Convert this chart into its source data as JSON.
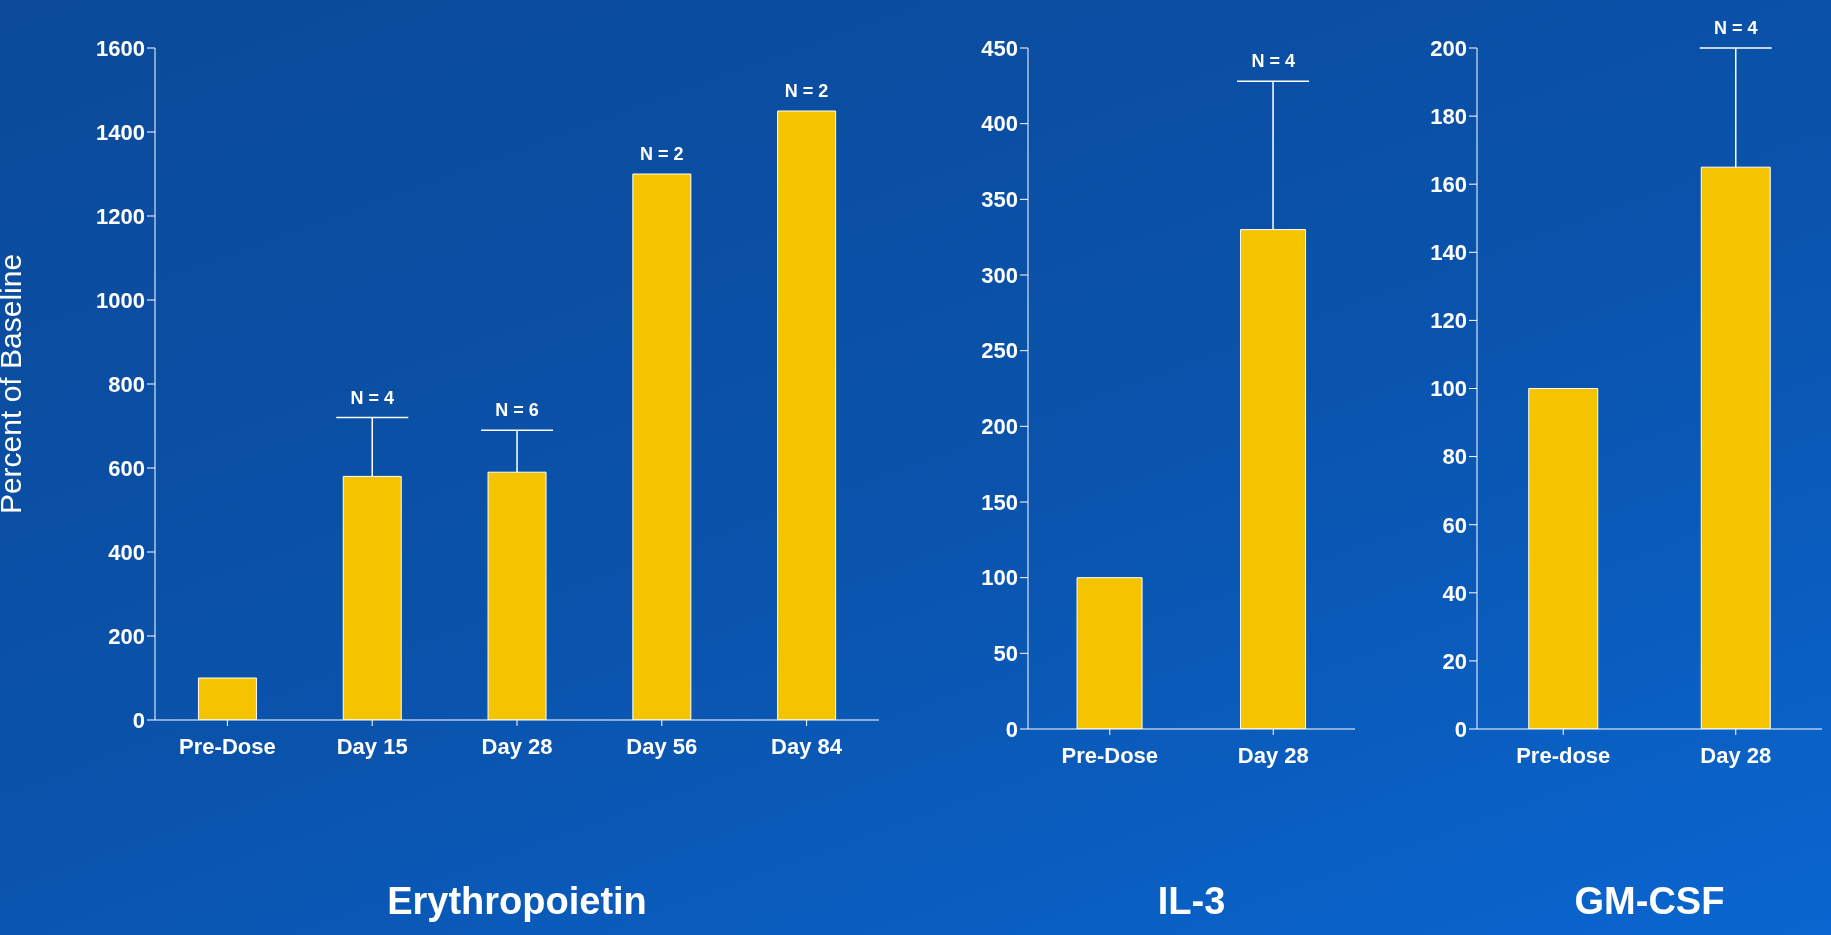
{
  "chart_data": [
    {
      "type": "bar",
      "title": "Erythropoietin",
      "ylabel": "Percent of Baseline",
      "categories": [
        "Pre-Dose",
        "Day 15",
        "Day 28",
        "Day 56",
        "Day 84"
      ],
      "values": [
        100,
        580,
        590,
        1300,
        1450
      ],
      "errors": [
        null,
        [
          580,
          720
        ],
        [
          590,
          690
        ],
        null,
        null
      ],
      "color": "#f5c400",
      "ylim": [
        0,
        1600
      ],
      "yticks": [
        0,
        200,
        400,
        600,
        800,
        1000,
        1200,
        1400,
        1600
      ],
      "grid": false,
      "legend": false,
      "annotations": [
        {
          "text": "N = 4",
          "x": "Day 15",
          "y": 720
        },
        {
          "text": "N = 6",
          "x": "Day 28",
          "y": 690
        },
        {
          "text": "N = 2",
          "x": "Day 56",
          "y": 1300
        },
        {
          "text": "N = 2",
          "x": "Day 84",
          "y": 1450
        }
      ]
    },
    {
      "type": "bar",
      "title": "IL-3",
      "categories": [
        "Pre-Dose",
        "Day 28"
      ],
      "values": [
        100,
        330
      ],
      "errors": [
        null,
        [
          330,
          428
        ]
      ],
      "color": "#f5c400",
      "ylim": [
        0,
        450
      ],
      "yticks": [
        0,
        50,
        100,
        150,
        200,
        250,
        300,
        350,
        400,
        450
      ],
      "grid": false,
      "legend": false,
      "annotations": [
        {
          "text": "N = 4",
          "x": "Day 28",
          "y": 428
        }
      ]
    },
    {
      "type": "bar",
      "title": "GM-CSF",
      "categories": [
        "Pre-dose",
        "Day 28"
      ],
      "values": [
        100,
        165
      ],
      "errors": [
        null,
        [
          165,
          200
        ]
      ],
      "color": "#f5c400",
      "ylim": [
        0,
        200
      ],
      "yticks": [
        0,
        20,
        40,
        60,
        80,
        100,
        120,
        140,
        160,
        180,
        200
      ],
      "grid": false,
      "legend": false,
      "annotations": [
        {
          "text": "N = 4",
          "x": "Day 28",
          "y": 200
        }
      ]
    }
  ]
}
